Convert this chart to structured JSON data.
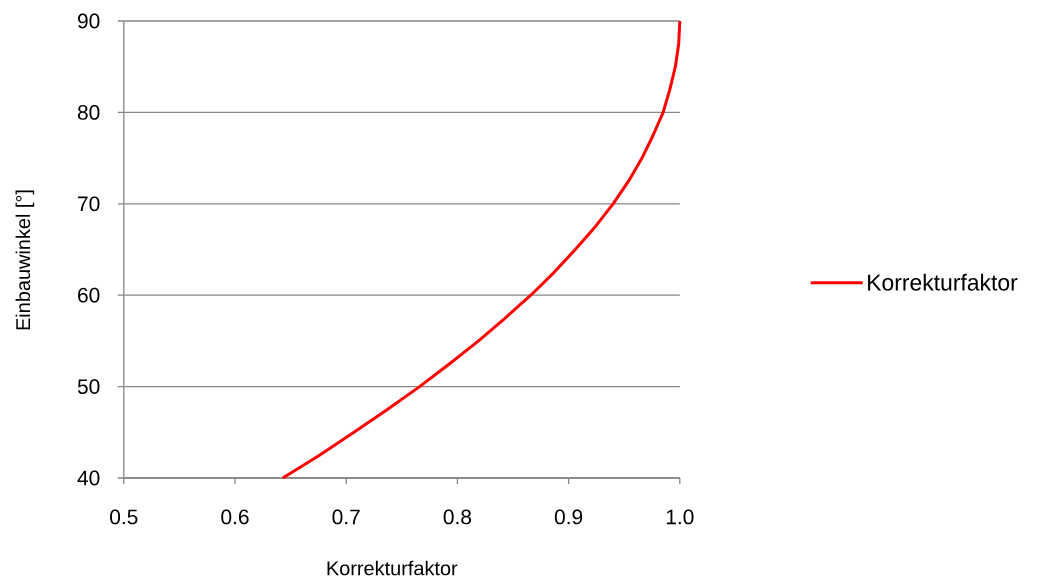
{
  "chart_data": {
    "type": "line",
    "xlabel": "Korrekturfaktor",
    "ylabel": "Einbauwinkel [°]",
    "x": [
      0.643,
      0.676,
      0.707,
      0.737,
      0.766,
      0.793,
      0.819,
      0.843,
      0.866,
      0.887,
      0.906,
      0.924,
      0.94,
      0.954,
      0.966,
      0.976,
      0.985,
      0.991,
      0.996,
      0.999,
      1.0
    ],
    "series": [
      {
        "name": "Korrekturfaktor",
        "color": "#ff0000",
        "values": [
          40,
          42.5,
          45,
          47.5,
          50,
          52.5,
          55,
          57.5,
          60,
          62.5,
          65,
          67.5,
          70,
          72.5,
          75,
          77.5,
          80,
          82.5,
          85,
          87.5,
          90
        ]
      }
    ],
    "xlim": [
      0.5,
      1.0
    ],
    "xticks": [
      0.5,
      0.6,
      0.7,
      0.8,
      0.9,
      {
        "value": 1.0,
        "label": "1.0"
      }
    ],
    "ylim": [
      40,
      90
    ],
    "yticks": [
      40,
      50,
      60,
      70,
      80,
      90
    ],
    "grid": "y",
    "legend": "right"
  }
}
